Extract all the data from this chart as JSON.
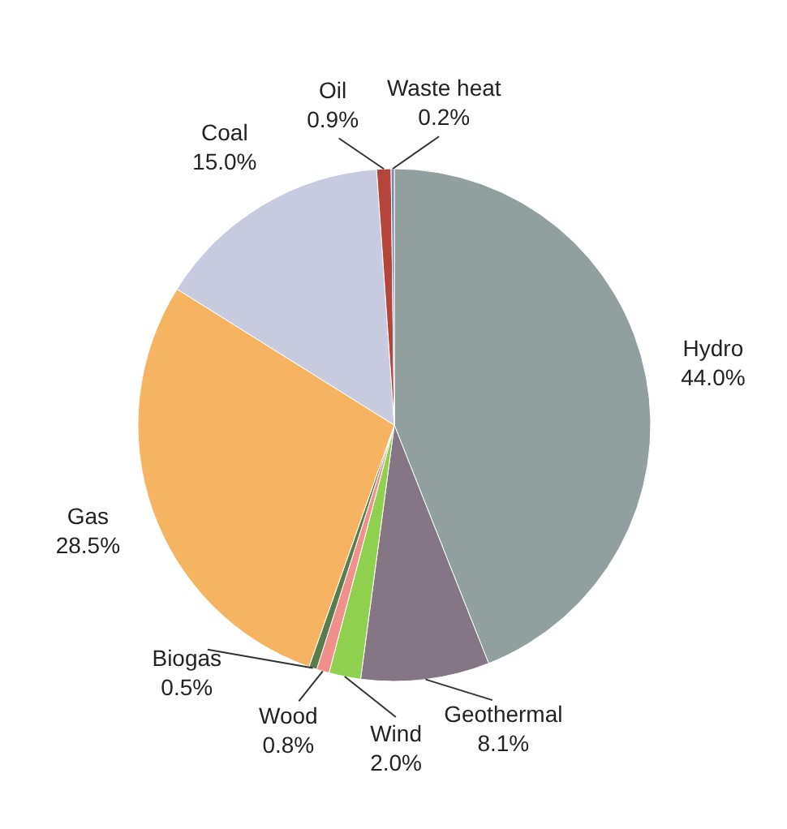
{
  "chart_data": {
    "type": "pie",
    "categories": [
      "Hydro",
      "Geothermal",
      "Wind",
      "Wood",
      "Biogas",
      "Gas",
      "Coal",
      "Oil",
      "Waste heat"
    ],
    "values": [
      44.0,
      8.1,
      2.0,
      0.8,
      0.5,
      28.5,
      15.0,
      0.9,
      0.2
    ],
    "value_labels": [
      "44.0%",
      "8.1%",
      "2.0%",
      "0.8%",
      "0.5%",
      "28.5%",
      "15.0%",
      "0.9%",
      "0.2%"
    ],
    "colors": [
      "#919f9f",
      "#857686",
      "#8fd14f",
      "#f0908a",
      "#5b7d4b",
      "#f6b462",
      "#c8cbe0",
      "#b5453a",
      "#7b8aa8"
    ],
    "legend": false
  }
}
